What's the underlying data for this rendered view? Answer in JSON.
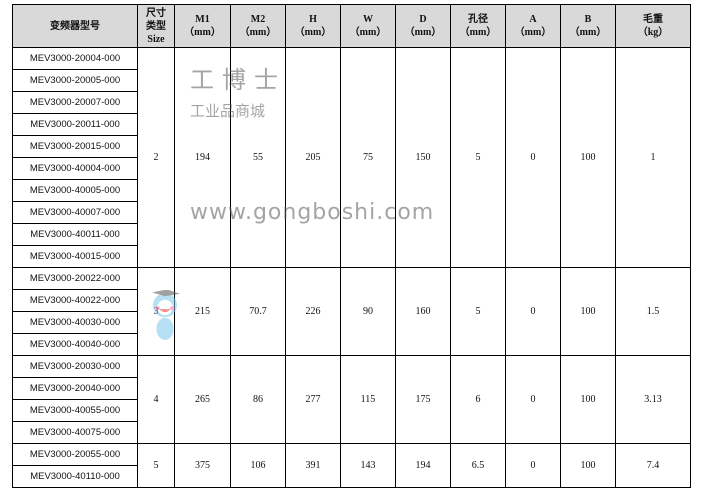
{
  "headers": [
    {
      "l1": "变频器型号",
      "l2": "",
      "l3": ""
    },
    {
      "l1": "尺寸",
      "l2": "类型",
      "l3": "Size"
    },
    {
      "l1": "M1",
      "l2": "（mm）",
      "l3": ""
    },
    {
      "l1": "M2",
      "l2": "（mm）",
      "l3": ""
    },
    {
      "l1": "H",
      "l2": "（mm）",
      "l3": ""
    },
    {
      "l1": "W",
      "l2": "（mm）",
      "l3": ""
    },
    {
      "l1": "D",
      "l2": "（mm）",
      "l3": ""
    },
    {
      "l1": "孔径",
      "l2": "（mm）",
      "l3": ""
    },
    {
      "l1": "A",
      "l2": "（mm）",
      "l3": ""
    },
    {
      "l1": "B",
      "l2": "（mm）",
      "l3": ""
    },
    {
      "l1": "毛重",
      "l2": "（kg）",
      "l3": ""
    }
  ],
  "groups": [
    {
      "models": [
        "MEV3000-20004-000",
        "MEV3000-20005-000",
        "MEV3000-20007-000",
        "MEV3000-20011-000",
        "MEV3000-20015-000",
        "MEV3000-40004-000",
        "MEV3000-40005-000",
        "MEV3000-40007-000",
        "MEV3000-40011-000",
        "MEV3000-40015-000"
      ],
      "values": [
        "2",
        "194",
        "55",
        "205",
        "75",
        "150",
        "5",
        "0",
        "100",
        "1"
      ]
    },
    {
      "models": [
        "MEV3000-20022-000",
        "MEV3000-40022-000",
        "MEV3000-40030-000",
        "MEV3000-40040-000"
      ],
      "values": [
        "3",
        "215",
        "70.7",
        "226",
        "90",
        "160",
        "5",
        "0",
        "100",
        "1.5"
      ]
    },
    {
      "models": [
        "MEV3000-20030-000",
        "MEV3000-20040-000",
        "MEV3000-40055-000",
        "MEV3000-40075-000"
      ],
      "values": [
        "4",
        "265",
        "86",
        "277",
        "115",
        "175",
        "6",
        "0",
        "100",
        "3.13"
      ]
    },
    {
      "models": [
        "MEV3000-20055-000",
        "MEV3000-40110-000"
      ],
      "values": [
        "5",
        "375",
        "106",
        "391",
        "143",
        "194",
        "6.5",
        "0",
        "100",
        "7.4"
      ]
    }
  ],
  "watermark": {
    "brand": "工博士",
    "tagline": "工业品商城",
    "url": "www.gongboshi.com"
  }
}
